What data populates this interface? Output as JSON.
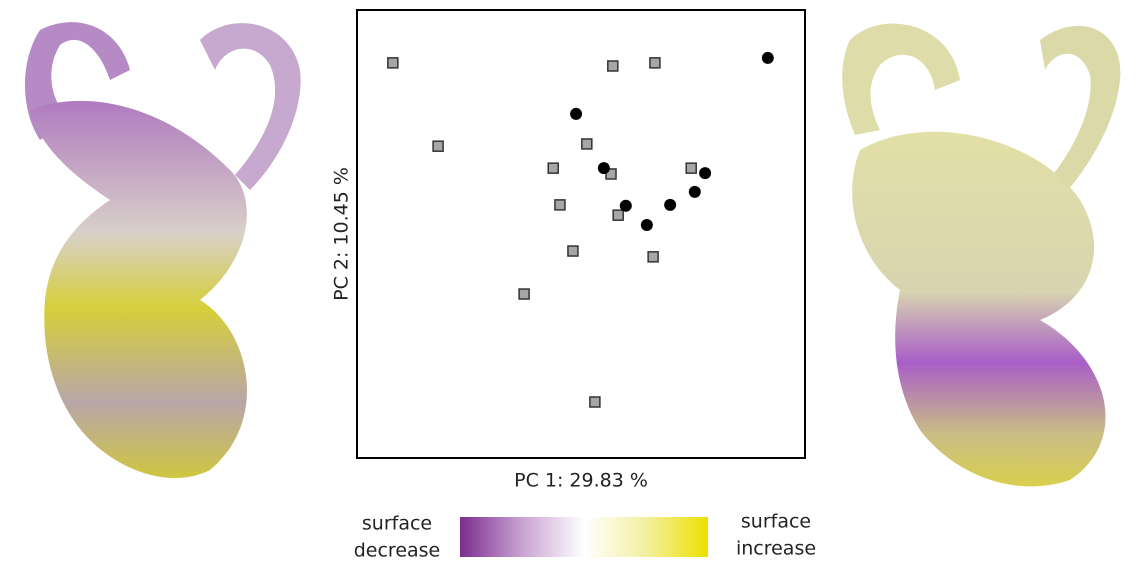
{
  "chart_data": {
    "type": "scatter",
    "xlabel": "PC 1: 29.83 %",
    "ylabel": "PC 2: 10.45 %",
    "xlim": [
      0,
      100
    ],
    "ylim": [
      0,
      100
    ],
    "series": [
      {
        "marker": "square",
        "color": "#a6a6a6",
        "x": [
          8.0,
          18.1,
          57.1,
          66.5,
          51.3,
          43.8,
          56.7,
          74.6,
          45.3,
          58.3,
          48.2,
          66.1,
          37.3,
          53.1
        ],
        "values": [
          88.2,
          69.6,
          87.5,
          88.2,
          70.1,
          64.7,
          63.4,
          64.7,
          56.5,
          54.2,
          46.2,
          44.9,
          36.6,
          12.5
        ]
      },
      {
        "marker": "circle",
        "color": "#000000",
        "x": [
          91.7,
          48.9,
          55.1,
          77.7,
          75.4,
          69.9,
          60.0,
          64.7
        ],
        "values": [
          89.3,
          76.8,
          64.7,
          63.6,
          59.4,
          56.5,
          56.3,
          52.0
        ]
      }
    ],
    "colorbar": {
      "low": [
        "surface",
        "decrease"
      ],
      "high": [
        "surface",
        "increase"
      ],
      "colors": [
        "#7b2d8e",
        "#c9a3d3",
        "#ffffff",
        "#f3f0a0",
        "#eee000"
      ]
    }
  }
}
